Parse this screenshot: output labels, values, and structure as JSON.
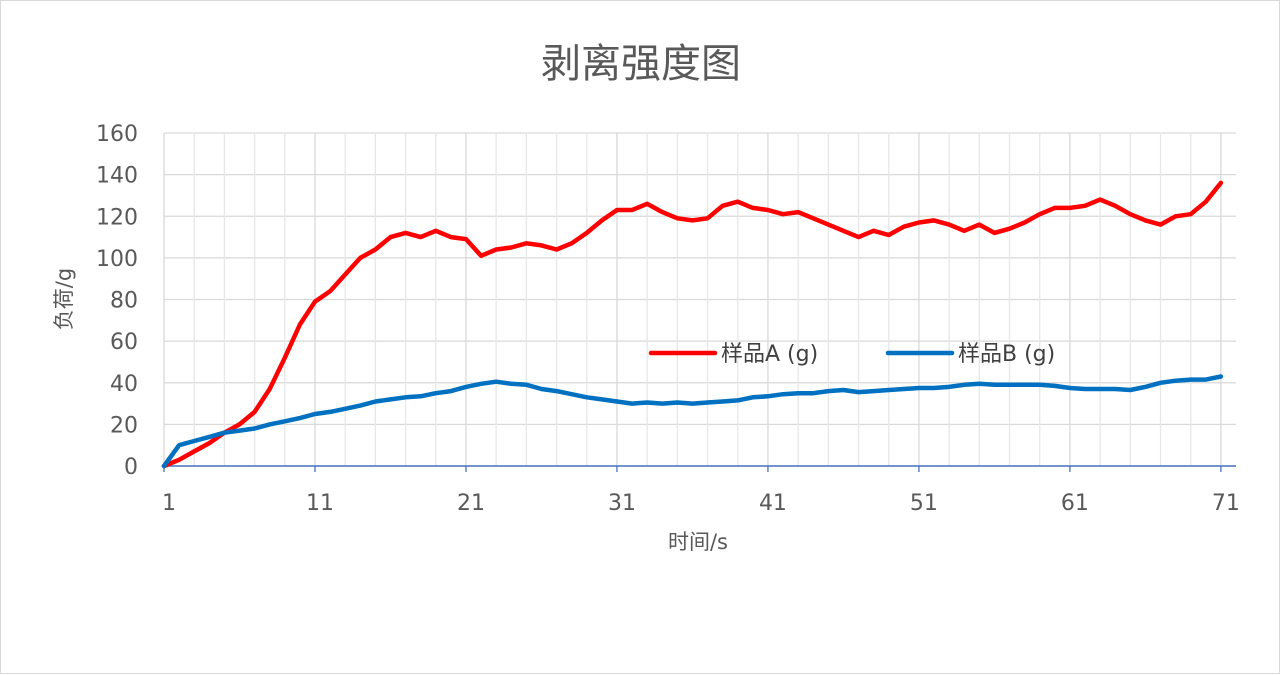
{
  "chart_data": {
    "type": "line",
    "title": "剥离强度图",
    "xlabel": "时间/s",
    "ylabel": "负荷/g",
    "x_ticks": [
      "1",
      "11",
      "21",
      "31",
      "41",
      "51",
      "61",
      "71"
    ],
    "y_ticks": [
      "0",
      "20",
      "40",
      "60",
      "80",
      "100",
      "120",
      "140",
      "160"
    ],
    "xlim": [
      1,
      72
    ],
    "ylim": [
      0,
      160
    ],
    "grid": true,
    "legend_position": "center-right",
    "series": [
      {
        "name": "样品A (g)",
        "color": "#ff0000",
        "x": [
          1,
          2,
          3,
          4,
          5,
          6,
          7,
          8,
          9,
          10,
          11,
          12,
          13,
          14,
          15,
          16,
          17,
          18,
          19,
          20,
          21,
          22,
          23,
          24,
          25,
          26,
          27,
          28,
          29,
          30,
          31,
          32,
          33,
          34,
          35,
          36,
          37,
          38,
          39,
          40,
          41,
          42,
          43,
          44,
          45,
          46,
          47,
          48,
          49,
          50,
          51,
          52,
          53,
          54,
          55,
          56,
          57,
          58,
          59,
          60,
          61,
          62,
          63,
          64,
          65,
          66,
          67,
          68,
          69,
          70,
          71
        ],
        "values": [
          0,
          3,
          7,
          11,
          16,
          20,
          26,
          37,
          52,
          68,
          79,
          84,
          92,
          100,
          104,
          110,
          112,
          110,
          113,
          110,
          109,
          101,
          104,
          105,
          107,
          106,
          104,
          107,
          112,
          118,
          123,
          123,
          126,
          122,
          119,
          118,
          119,
          125,
          127,
          124,
          123,
          121,
          122,
          119,
          116,
          113,
          110,
          113,
          111,
          115,
          117,
          118,
          116,
          113,
          116,
          112,
          114,
          117,
          121,
          124,
          124,
          125,
          128,
          125,
          121,
          118,
          116,
          120,
          121,
          127,
          136
        ]
      },
      {
        "name": "样品B (g)",
        "color": "#0070c0",
        "x": [
          1,
          2,
          3,
          4,
          5,
          6,
          7,
          8,
          9,
          10,
          11,
          12,
          13,
          14,
          15,
          16,
          17,
          18,
          19,
          20,
          21,
          22,
          23,
          24,
          25,
          26,
          27,
          28,
          29,
          30,
          31,
          32,
          33,
          34,
          35,
          36,
          37,
          38,
          39,
          40,
          41,
          42,
          43,
          44,
          45,
          46,
          47,
          48,
          49,
          50,
          51,
          52,
          53,
          54,
          55,
          56,
          57,
          58,
          59,
          60,
          61,
          62,
          63,
          64,
          65,
          66,
          67,
          68,
          69,
          70,
          71
        ],
        "values": [
          0,
          10,
          12,
          14,
          16,
          17,
          18,
          20,
          21.5,
          23,
          25,
          26,
          27.5,
          29,
          31,
          32,
          33,
          33.5,
          35,
          36,
          38,
          39.5,
          40.5,
          39.5,
          39,
          37,
          36,
          34.5,
          33,
          32,
          31,
          30,
          30.5,
          30,
          30.5,
          30,
          30.5,
          31,
          31.5,
          33,
          33.5,
          34.5,
          35,
          35,
          36,
          36.5,
          35.5,
          36,
          36.5,
          37,
          37.5,
          37.5,
          38,
          39,
          39.5,
          39,
          39,
          39,
          39,
          38.5,
          37.5,
          37,
          37,
          37,
          36.5,
          38,
          40,
          41,
          41.5,
          41.5,
          43
        ]
      }
    ]
  }
}
